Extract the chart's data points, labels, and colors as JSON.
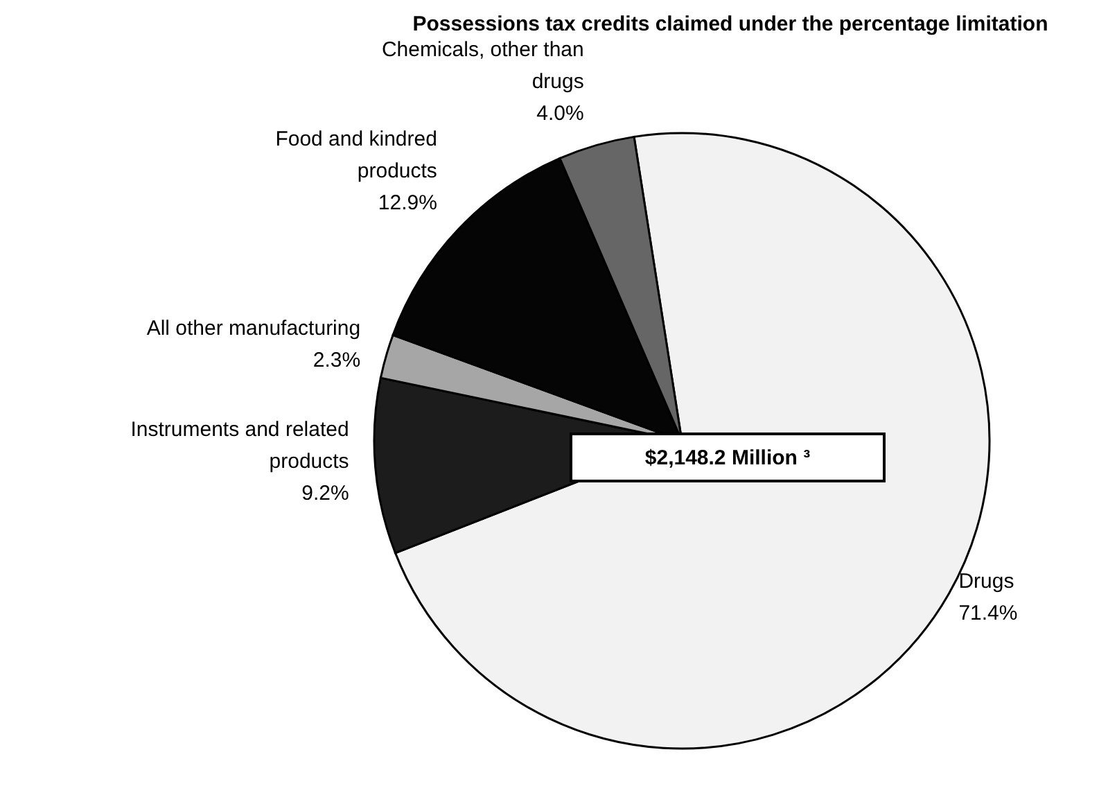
{
  "chart_data": {
    "type": "pie",
    "title": "Possessions tax credits claimed under the percentage limitation",
    "categories": [
      "Drugs",
      "Instruments and related products",
      "All other manufacturing",
      "Food and kindred products",
      "Chemicals, other than drugs"
    ],
    "values": [
      71.4,
      9.2,
      2.3,
      12.9,
      4.0
    ],
    "value_labels": [
      "71.4%",
      "9.2%",
      "2.3%",
      "12.9%",
      "4.0%"
    ],
    "colors": [
      "#f2f2f2",
      "#1c1c1c",
      "#a6a6a6",
      "#050505",
      "#666666"
    ],
    "annotations": [
      "$2,148.2 Million ³"
    ]
  }
}
